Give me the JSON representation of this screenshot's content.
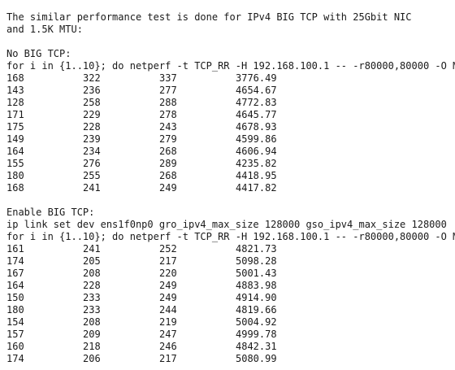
{
  "intro": {
    "line1": "The similar performance test is done for IPv4 BIG TCP with 25Gbit NIC",
    "line2": "and 1.5K MTU:"
  },
  "no_big_tcp": {
    "heading": "No BIG TCP:",
    "command": "for i in {1..10}; do netperf -t TCP_RR -H 192.168.100.1 -- -r80000,80000 -O M",
    "rows": [
      [
        "168",
        "322",
        "337",
        "3776.49"
      ],
      [
        "143",
        "236",
        "277",
        "4654.67"
      ],
      [
        "128",
        "258",
        "288",
        "4772.83"
      ],
      [
        "171",
        "229",
        "278",
        "4645.77"
      ],
      [
        "175",
        "228",
        "243",
        "4678.93"
      ],
      [
        "149",
        "239",
        "279",
        "4599.86"
      ],
      [
        "164",
        "234",
        "268",
        "4606.94"
      ],
      [
        "155",
        "276",
        "289",
        "4235.82"
      ],
      [
        "180",
        "255",
        "268",
        "4418.95"
      ],
      [
        "168",
        "241",
        "249",
        "4417.82"
      ]
    ]
  },
  "enable_big_tcp": {
    "heading": "Enable BIG TCP:",
    "ip_command": "ip link set dev ens1f0np0 gro_ipv4_max_size 128000 gso_ipv4_max_size 128000",
    "command": "for i in {1..10}; do netperf -t TCP_RR -H 192.168.100.1 -- -r80000,80000 -O M",
    "rows": [
      [
        "161",
        "241",
        "252",
        "4821.73"
      ],
      [
        "174",
        "205",
        "217",
        "5098.28"
      ],
      [
        "167",
        "208",
        "220",
        "5001.43"
      ],
      [
        "164",
        "228",
        "249",
        "4883.98"
      ],
      [
        "150",
        "233",
        "249",
        "4914.90"
      ],
      [
        "180",
        "233",
        "244",
        "4819.66"
      ],
      [
        "154",
        "208",
        "219",
        "5004.92"
      ],
      [
        "157",
        "209",
        "247",
        "4999.78"
      ],
      [
        "160",
        "218",
        "246",
        "4842.31"
      ],
      [
        "174",
        "206",
        "217",
        "5080.99"
      ]
    ]
  }
}
